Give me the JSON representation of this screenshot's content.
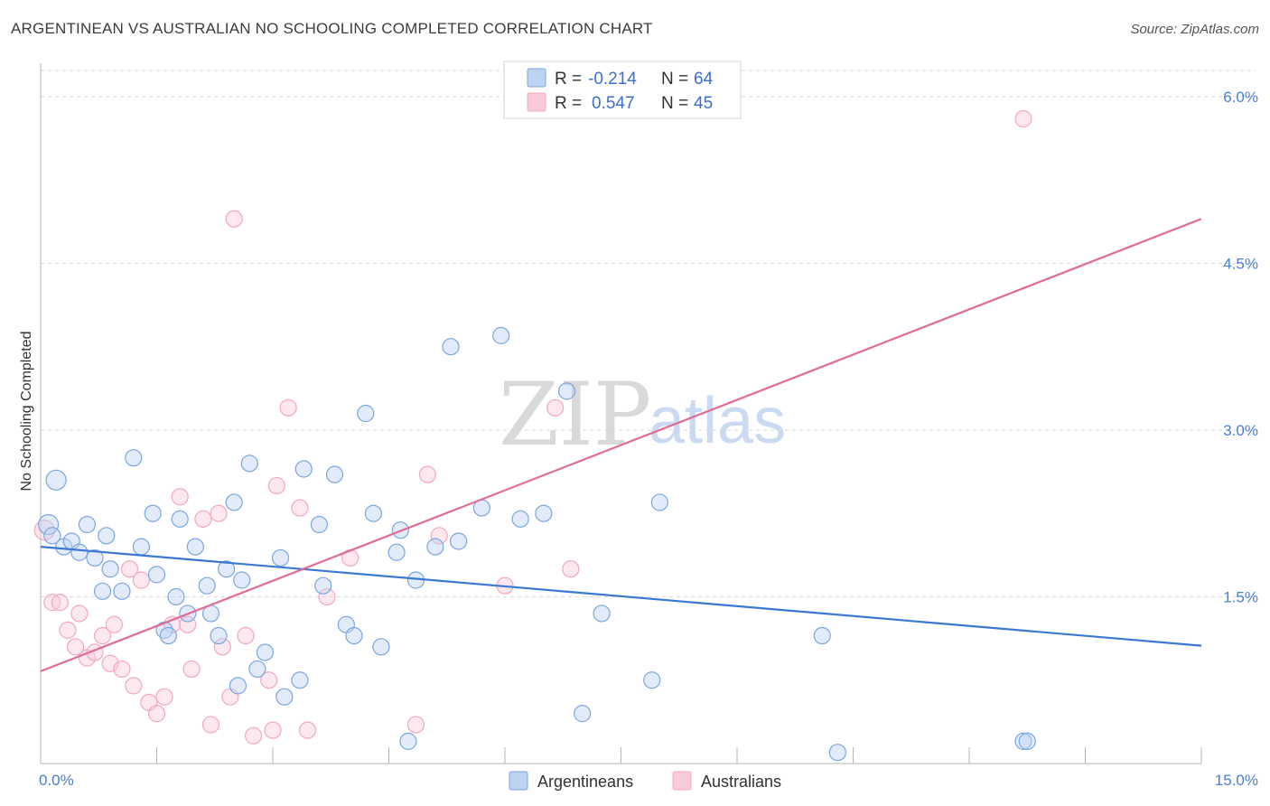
{
  "header": {
    "title": "ARGENTINEAN VS AUSTRALIAN NO SCHOOLING COMPLETED CORRELATION CHART",
    "source": "Source: ZipAtlas.com"
  },
  "watermark": {
    "zip": "ZIP",
    "atlas": "atlas"
  },
  "legend": {
    "rows": [
      {
        "r_label": "R =",
        "r_value": "-0.214",
        "n_label": "N =",
        "n_value": "64"
      },
      {
        "r_label": "R =",
        "r_value": "0.547",
        "n_label": "N =",
        "n_value": "45"
      }
    ]
  },
  "bottom_legend": {
    "a": "Argentineans",
    "b": "Australians"
  },
  "chart_data": {
    "type": "scatter",
    "title": "ARGENTINEAN VS AUSTRALIAN NO SCHOOLING COMPLETED CORRELATION CHART",
    "xlabel": "",
    "ylabel": "No Schooling Completed",
    "xlim": [
      0,
      15
    ],
    "ylim": [
      0,
      6.3
    ],
    "x_tick_labels": [
      "0.0%",
      "15.0%"
    ],
    "y_ticks": [
      1.5,
      3.0,
      4.5,
      6.0
    ],
    "y_tick_labels": [
      "1.5%",
      "3.0%",
      "4.5%",
      "6.0%"
    ],
    "grid": true,
    "colors": {
      "argentineans": "#7ba6e0",
      "australians": "#f3a7bf",
      "arg_line": "#3a78d4",
      "aus_line": "#e06b96"
    },
    "series": [
      {
        "name": "Argentineans",
        "r": -0.214,
        "n": 64,
        "trend": {
          "x": [
            0,
            15
          ],
          "y": [
            1.95,
            1.06
          ]
        },
        "points": [
          [
            0.1,
            2.15
          ],
          [
            0.2,
            2.55
          ],
          [
            0.3,
            1.95
          ],
          [
            0.4,
            2.0
          ],
          [
            0.5,
            1.9
          ],
          [
            0.6,
            2.15
          ],
          [
            0.7,
            1.85
          ],
          [
            0.85,
            2.05
          ],
          [
            0.9,
            1.75
          ],
          [
            0.8,
            1.55
          ],
          [
            1.05,
            1.55
          ],
          [
            1.2,
            2.75
          ],
          [
            1.3,
            1.95
          ],
          [
            1.45,
            2.25
          ],
          [
            1.5,
            1.7
          ],
          [
            1.6,
            1.2
          ],
          [
            1.65,
            1.15
          ],
          [
            1.75,
            1.5
          ],
          [
            1.8,
            2.2
          ],
          [
            1.9,
            1.35
          ],
          [
            2.0,
            1.95
          ],
          [
            2.15,
            1.6
          ],
          [
            2.2,
            1.35
          ],
          [
            2.3,
            1.15
          ],
          [
            2.4,
            1.75
          ],
          [
            2.5,
            2.35
          ],
          [
            2.55,
            0.7
          ],
          [
            2.6,
            1.65
          ],
          [
            2.7,
            2.7
          ],
          [
            2.8,
            0.85
          ],
          [
            2.9,
            1.0
          ],
          [
            3.1,
            1.85
          ],
          [
            3.15,
            0.6
          ],
          [
            3.35,
            0.75
          ],
          [
            3.4,
            2.65
          ],
          [
            3.6,
            2.15
          ],
          [
            3.65,
            1.6
          ],
          [
            3.8,
            2.6
          ],
          [
            3.95,
            1.25
          ],
          [
            4.05,
            1.15
          ],
          [
            4.2,
            3.15
          ],
          [
            4.3,
            2.25
          ],
          [
            4.4,
            1.05
          ],
          [
            4.6,
            1.9
          ],
          [
            4.65,
            2.1
          ],
          [
            4.75,
            0.2
          ],
          [
            4.85,
            1.65
          ],
          [
            5.1,
            1.95
          ],
          [
            5.3,
            3.75
          ],
          [
            5.4,
            2.0
          ],
          [
            5.7,
            2.3
          ],
          [
            5.95,
            3.85
          ],
          [
            6.2,
            2.2
          ],
          [
            6.5,
            2.25
          ],
          [
            6.8,
            3.35
          ],
          [
            7.0,
            0.45
          ],
          [
            7.25,
            1.35
          ],
          [
            7.9,
            0.75
          ],
          [
            8.0,
            2.35
          ],
          [
            10.1,
            1.15
          ],
          [
            10.3,
            0.1
          ],
          [
            12.7,
            0.2
          ],
          [
            0.15,
            2.05
          ],
          [
            12.75,
            0.2
          ]
        ]
      },
      {
        "name": "Australians",
        "r": 0.547,
        "n": 45,
        "trend": {
          "x": [
            0,
            15
          ],
          "y": [
            0.83,
            4.9
          ]
        },
        "points": [
          [
            0.05,
            2.1
          ],
          [
            0.15,
            1.45
          ],
          [
            0.25,
            1.45
          ],
          [
            0.35,
            1.2
          ],
          [
            0.45,
            1.05
          ],
          [
            0.5,
            1.35
          ],
          [
            0.6,
            0.95
          ],
          [
            0.7,
            1.0
          ],
          [
            0.8,
            1.15
          ],
          [
            0.9,
            0.9
          ],
          [
            0.95,
            1.25
          ],
          [
            1.05,
            0.85
          ],
          [
            1.15,
            1.75
          ],
          [
            1.2,
            0.7
          ],
          [
            1.3,
            1.65
          ],
          [
            1.4,
            0.55
          ],
          [
            1.5,
            0.45
          ],
          [
            1.6,
            0.6
          ],
          [
            1.7,
            1.25
          ],
          [
            1.8,
            2.4
          ],
          [
            1.9,
            1.25
          ],
          [
            1.95,
            0.85
          ],
          [
            2.1,
            2.2
          ],
          [
            2.2,
            0.35
          ],
          [
            2.3,
            2.25
          ],
          [
            2.35,
            1.05
          ],
          [
            2.45,
            0.6
          ],
          [
            2.5,
            4.9
          ],
          [
            2.65,
            1.15
          ],
          [
            2.75,
            0.25
          ],
          [
            2.95,
            0.75
          ],
          [
            3.0,
            0.3
          ],
          [
            3.05,
            2.5
          ],
          [
            3.2,
            3.2
          ],
          [
            3.35,
            2.3
          ],
          [
            3.45,
            0.3
          ],
          [
            3.7,
            1.5
          ],
          [
            4.0,
            1.85
          ],
          [
            4.85,
            0.35
          ],
          [
            5.0,
            2.6
          ],
          [
            5.15,
            2.05
          ],
          [
            6.0,
            1.6
          ],
          [
            6.65,
            3.2
          ],
          [
            6.85,
            1.75
          ],
          [
            12.7,
            5.8
          ]
        ]
      }
    ]
  }
}
